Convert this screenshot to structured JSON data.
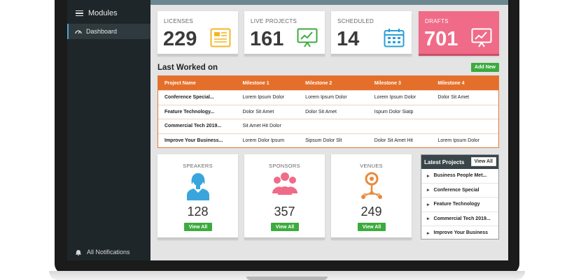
{
  "sidebar": {
    "modules_label": "Modules",
    "dashboard_label": "Dashboard",
    "notifications_label": "All Notifications"
  },
  "stats": [
    {
      "label": "LICENSES",
      "value": "229",
      "icon": "document-icon",
      "color": "#f5b625"
    },
    {
      "label": "LIVE PROJECTS",
      "value": "161",
      "icon": "chart-icon",
      "color": "#3cab3e"
    },
    {
      "label": "SCHEDULED",
      "value": "14",
      "icon": "calendar-icon",
      "color": "#2a9fd6"
    },
    {
      "label": "DRAFTS",
      "value": "701",
      "icon": "chart-icon",
      "color": "#f06b88"
    }
  ],
  "last_worked": {
    "title": "Last Worked on",
    "add_new": "Add New",
    "headers": [
      "Project Name",
      "Milestone 1",
      "Milestone 2",
      "Milestone 3",
      "Milestone 4"
    ],
    "rows": [
      [
        "Conference Special...",
        "Lorem Ipsum Dolor",
        "Lorem Ipsum Dolor",
        "Lorem Ipsum Dolor",
        "Dolor Sit Amet"
      ],
      [
        "Feature Technology...",
        "Dolor Sit Amet",
        "Dolor Sit Amet",
        "Ispum Dolor Siatp",
        ""
      ],
      [
        "Commercial Tech 2019...",
        "Sit Amet Hit Dolor",
        "",
        "",
        ""
      ],
      [
        "Improve Your Business...",
        "Lorem Dolor Ipsum",
        "Sipsum Dolor Slt",
        "Dolor Sit Amet Hit",
        "Lorem Ipsum Dolor"
      ]
    ]
  },
  "cards": [
    {
      "label": "SPEAKERS",
      "value": "128",
      "button": "View All",
      "icon": "person-icon",
      "color": "#3aa5dc"
    },
    {
      "label": "SPONSORS",
      "value": "357",
      "button": "View All",
      "icon": "group-icon",
      "color": "#f06b88"
    },
    {
      "label": "VENUES",
      "value": "249",
      "button": "View All",
      "icon": "location-icon",
      "color": "#e98a3c"
    }
  ],
  "latest_projects": {
    "title": "Latest Projects",
    "view_all": "View All",
    "items": [
      "Business People Met...",
      "Conference Special",
      "Feature Technology",
      "Commercial Tech 2019...",
      "Improve Your Business"
    ]
  }
}
